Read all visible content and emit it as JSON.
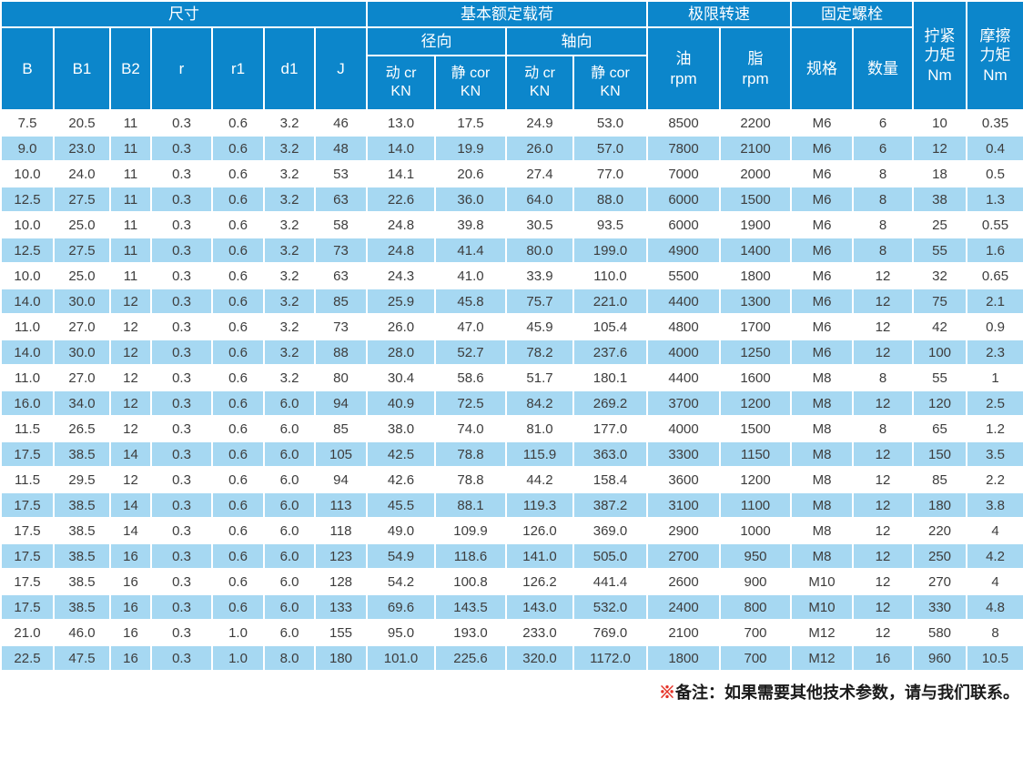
{
  "table": {
    "header": {
      "dimensions": "尺寸",
      "basic_load": "基本额定载荷",
      "limit_speed": "极限转速",
      "fixed_bolt": "固定螺栓",
      "tighten_torque": "拧紧\n力矩\nNm",
      "friction_torque": "摩擦\n力矩\nNm",
      "radial": "径向",
      "axial": "轴向",
      "dynamic_cr": "动 cr\nKN",
      "static_cor": "静 cor\nKN",
      "oil": "油\nrpm",
      "grease": "脂\nrpm",
      "spec": "规格",
      "quantity": "数量",
      "b": "B",
      "b1": "B1",
      "b2": "B2",
      "r": "r",
      "r1": "r1",
      "d1": "d1",
      "j": "J"
    },
    "rows": [
      [
        "7.5",
        "20.5",
        "11",
        "0.3",
        "0.6",
        "3.2",
        "46",
        "13.0",
        "17.5",
        "24.9",
        "53.0",
        "8500",
        "2200",
        "M6",
        "6",
        "10",
        "0.35"
      ],
      [
        "9.0",
        "23.0",
        "11",
        "0.3",
        "0.6",
        "3.2",
        "48",
        "14.0",
        "19.9",
        "26.0",
        "57.0",
        "7800",
        "2100",
        "M6",
        "6",
        "12",
        "0.4"
      ],
      [
        "10.0",
        "24.0",
        "11",
        "0.3",
        "0.6",
        "3.2",
        "53",
        "14.1",
        "20.6",
        "27.4",
        "77.0",
        "7000",
        "2000",
        "M6",
        "8",
        "18",
        "0.5"
      ],
      [
        "12.5",
        "27.5",
        "11",
        "0.3",
        "0.6",
        "3.2",
        "63",
        "22.6",
        "36.0",
        "64.0",
        "88.0",
        "6000",
        "1500",
        "M6",
        "8",
        "38",
        "1.3"
      ],
      [
        "10.0",
        "25.0",
        "11",
        "0.3",
        "0.6",
        "3.2",
        "58",
        "24.8",
        "39.8",
        "30.5",
        "93.5",
        "6000",
        "1900",
        "M6",
        "8",
        "25",
        "0.55"
      ],
      [
        "12.5",
        "27.5",
        "11",
        "0.3",
        "0.6",
        "3.2",
        "73",
        "24.8",
        "41.4",
        "80.0",
        "199.0",
        "4900",
        "1400",
        "M6",
        "8",
        "55",
        "1.6"
      ],
      [
        "10.0",
        "25.0",
        "11",
        "0.3",
        "0.6",
        "3.2",
        "63",
        "24.3",
        "41.0",
        "33.9",
        "110.0",
        "5500",
        "1800",
        "M6",
        "12",
        "32",
        "0.65"
      ],
      [
        "14.0",
        "30.0",
        "12",
        "0.3",
        "0.6",
        "3.2",
        "85",
        "25.9",
        "45.8",
        "75.7",
        "221.0",
        "4400",
        "1300",
        "M6",
        "12",
        "75",
        "2.1"
      ],
      [
        "11.0",
        "27.0",
        "12",
        "0.3",
        "0.6",
        "3.2",
        "73",
        "26.0",
        "47.0",
        "45.9",
        "105.4",
        "4800",
        "1700",
        "M6",
        "12",
        "42",
        "0.9"
      ],
      [
        "14.0",
        "30.0",
        "12",
        "0.3",
        "0.6",
        "3.2",
        "88",
        "28.0",
        "52.7",
        "78.2",
        "237.6",
        "4000",
        "1250",
        "M6",
        "12",
        "100",
        "2.3"
      ],
      [
        "11.0",
        "27.0",
        "12",
        "0.3",
        "0.6",
        "3.2",
        "80",
        "30.4",
        "58.6",
        "51.7",
        "180.1",
        "4400",
        "1600",
        "M8",
        "8",
        "55",
        "1"
      ],
      [
        "16.0",
        "34.0",
        "12",
        "0.3",
        "0.6",
        "6.0",
        "94",
        "40.9",
        "72.5",
        "84.2",
        "269.2",
        "3700",
        "1200",
        "M8",
        "12",
        "120",
        "2.5"
      ],
      [
        "11.5",
        "26.5",
        "12",
        "0.3",
        "0.6",
        "6.0",
        "85",
        "38.0",
        "74.0",
        "81.0",
        "177.0",
        "4000",
        "1500",
        "M8",
        "8",
        "65",
        "1.2"
      ],
      [
        "17.5",
        "38.5",
        "14",
        "0.3",
        "0.6",
        "6.0",
        "105",
        "42.5",
        "78.8",
        "115.9",
        "363.0",
        "3300",
        "1150",
        "M8",
        "12",
        "150",
        "3.5"
      ],
      [
        "11.5",
        "29.5",
        "12",
        "0.3",
        "0.6",
        "6.0",
        "94",
        "42.6",
        "78.8",
        "44.2",
        "158.4",
        "3600",
        "1200",
        "M8",
        "12",
        "85",
        "2.2"
      ],
      [
        "17.5",
        "38.5",
        "14",
        "0.3",
        "0.6",
        "6.0",
        "113",
        "45.5",
        "88.1",
        "119.3",
        "387.2",
        "3100",
        "1100",
        "M8",
        "12",
        "180",
        "3.8"
      ],
      [
        "17.5",
        "38.5",
        "14",
        "0.3",
        "0.6",
        "6.0",
        "118",
        "49.0",
        "109.9",
        "126.0",
        "369.0",
        "2900",
        "1000",
        "M8",
        "12",
        "220",
        "4"
      ],
      [
        "17.5",
        "38.5",
        "16",
        "0.3",
        "0.6",
        "6.0",
        "123",
        "54.9",
        "118.6",
        "141.0",
        "505.0",
        "2700",
        "950",
        "M8",
        "12",
        "250",
        "4.2"
      ],
      [
        "17.5",
        "38.5",
        "16",
        "0.3",
        "0.6",
        "6.0",
        "128",
        "54.2",
        "100.8",
        "126.2",
        "441.4",
        "2600",
        "900",
        "M10",
        "12",
        "270",
        "4"
      ],
      [
        "17.5",
        "38.5",
        "16",
        "0.3",
        "0.6",
        "6.0",
        "133",
        "69.6",
        "143.5",
        "143.0",
        "532.0",
        "2400",
        "800",
        "M10",
        "12",
        "330",
        "4.8"
      ],
      [
        "21.0",
        "46.0",
        "16",
        "0.3",
        "1.0",
        "6.0",
        "155",
        "95.0",
        "193.0",
        "233.0",
        "769.0",
        "2100",
        "700",
        "M12",
        "12",
        "580",
        "8"
      ],
      [
        "22.5",
        "47.5",
        "16",
        "0.3",
        "1.0",
        "8.0",
        "180",
        "101.0",
        "225.6",
        "320.0",
        "1172.0",
        "1800",
        "700",
        "M12",
        "16",
        "960",
        "10.5"
      ]
    ]
  },
  "note": {
    "marker": "※",
    "text": "备注：如果需要其他技术参数，请与我们联系。"
  },
  "colors": {
    "header_bg": "#0c86cb",
    "header_text": "#ffffff",
    "row_bg": "#ffffff",
    "row_alt_bg": "#a6d8f2",
    "body_text": "#3d3d3d",
    "note_marker": "#e53328",
    "border": "#ffffff"
  }
}
